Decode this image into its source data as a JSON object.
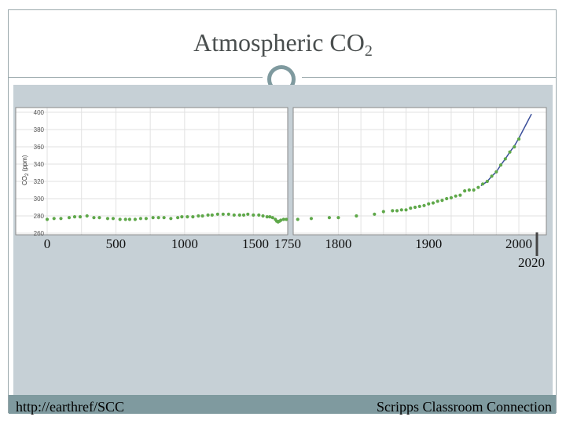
{
  "slide": {
    "title_main": "Atmospheric CO",
    "title_sub": "2",
    "footer_left": "http://earthref/SCC",
    "footer_right": "Scripps Classroom Connection"
  },
  "colors": {
    "accent": "#7f9a9f",
    "background": "#c6d0d6",
    "points": "#5fa84a",
    "line": "#3b4f9a"
  },
  "chart_data": {
    "type": "scatter",
    "ylabel_main": "CO",
    "ylabel_sub": "2",
    "ylabel_unit": "(ppm)",
    "ylim": [
      260,
      400
    ],
    "yticks": [
      260,
      280,
      300,
      320,
      340,
      360,
      380,
      400
    ],
    "grid": true,
    "panels": [
      {
        "name": "left",
        "xlim": [
          0,
          1750
        ],
        "xticks": [
          0,
          500,
          1000
        ],
        "xtick_labels": [
          "0",
          "500",
          "1000"
        ]
      },
      {
        "name": "right",
        "xlim": [
          1750,
          2020
        ],
        "xticks": [
          1800,
          1900,
          2000
        ],
        "xtick_labels": [
          "1800",
          "1900",
          "2000"
        ]
      }
    ],
    "extra_xtick_labels": [
      "1500",
      "1750",
      "2020"
    ],
    "series": [
      {
        "values": [
          [
            0,
            276
          ],
          [
            50,
            277
          ],
          [
            100,
            277
          ],
          [
            160,
            278
          ],
          [
            200,
            279
          ],
          [
            240,
            279
          ],
          [
            290,
            280
          ],
          [
            340,
            278
          ],
          [
            380,
            278
          ],
          [
            440,
            277
          ],
          [
            480,
            277
          ],
          [
            530,
            276
          ],
          [
            570,
            276
          ],
          [
            600,
            276
          ],
          [
            640,
            276
          ],
          [
            680,
            277
          ],
          [
            720,
            277
          ],
          [
            770,
            278
          ],
          [
            810,
            278
          ],
          [
            850,
            278
          ],
          [
            900,
            277
          ],
          [
            950,
            278
          ],
          [
            980,
            279
          ],
          [
            1020,
            279
          ],
          [
            1060,
            279
          ],
          [
            1100,
            280
          ],
          [
            1130,
            280
          ],
          [
            1170,
            281
          ],
          [
            1200,
            281
          ],
          [
            1240,
            282
          ],
          [
            1280,
            282
          ],
          [
            1320,
            282
          ],
          [
            1360,
            281
          ],
          [
            1400,
            281
          ],
          [
            1430,
            281
          ],
          [
            1460,
            282
          ],
          [
            1500,
            281
          ],
          [
            1540,
            281
          ],
          [
            1570,
            280
          ],
          [
            1600,
            279
          ],
          [
            1620,
            279
          ],
          [
            1640,
            278
          ],
          [
            1660,
            276
          ],
          [
            1670,
            274
          ],
          [
            1680,
            273
          ],
          [
            1690,
            274
          ],
          [
            1700,
            275
          ],
          [
            1720,
            276
          ],
          [
            1740,
            276
          ],
          [
            1755,
            276
          ],
          [
            1770,
            277
          ],
          [
            1790,
            278
          ],
          [
            1800,
            278
          ],
          [
            1820,
            280
          ],
          [
            1840,
            282
          ],
          [
            1850,
            285
          ],
          [
            1860,
            286
          ],
          [
            1865,
            286
          ],
          [
            1870,
            287
          ],
          [
            1875,
            287
          ],
          [
            1880,
            289
          ],
          [
            1885,
            290
          ],
          [
            1890,
            291
          ],
          [
            1895,
            292
          ],
          [
            1900,
            294
          ],
          [
            1905,
            295
          ],
          [
            1910,
            297
          ],
          [
            1915,
            298
          ],
          [
            1920,
            300
          ],
          [
            1925,
            301
          ],
          [
            1930,
            303
          ],
          [
            1935,
            304
          ],
          [
            1940,
            309
          ],
          [
            1945,
            310
          ],
          [
            1950,
            310
          ],
          [
            1955,
            313
          ],
          [
            1960,
            317
          ],
          [
            1965,
            320
          ],
          [
            1970,
            326
          ],
          [
            1975,
            331
          ],
          [
            1980,
            339
          ],
          [
            1985,
            346
          ],
          [
            1990,
            354
          ],
          [
            1995,
            360
          ],
          [
            2000,
            369
          ]
        ]
      },
      {
        "values": [
          [
            1958,
            315
          ],
          [
            1965,
            320
          ],
          [
            1970,
            326
          ],
          [
            1975,
            331
          ],
          [
            1980,
            339
          ],
          [
            1985,
            346
          ],
          [
            1990,
            354
          ],
          [
            1995,
            361
          ],
          [
            2000,
            370
          ],
          [
            2005,
            380
          ],
          [
            2010,
            390
          ],
          [
            2014,
            398
          ]
        ]
      }
    ]
  }
}
